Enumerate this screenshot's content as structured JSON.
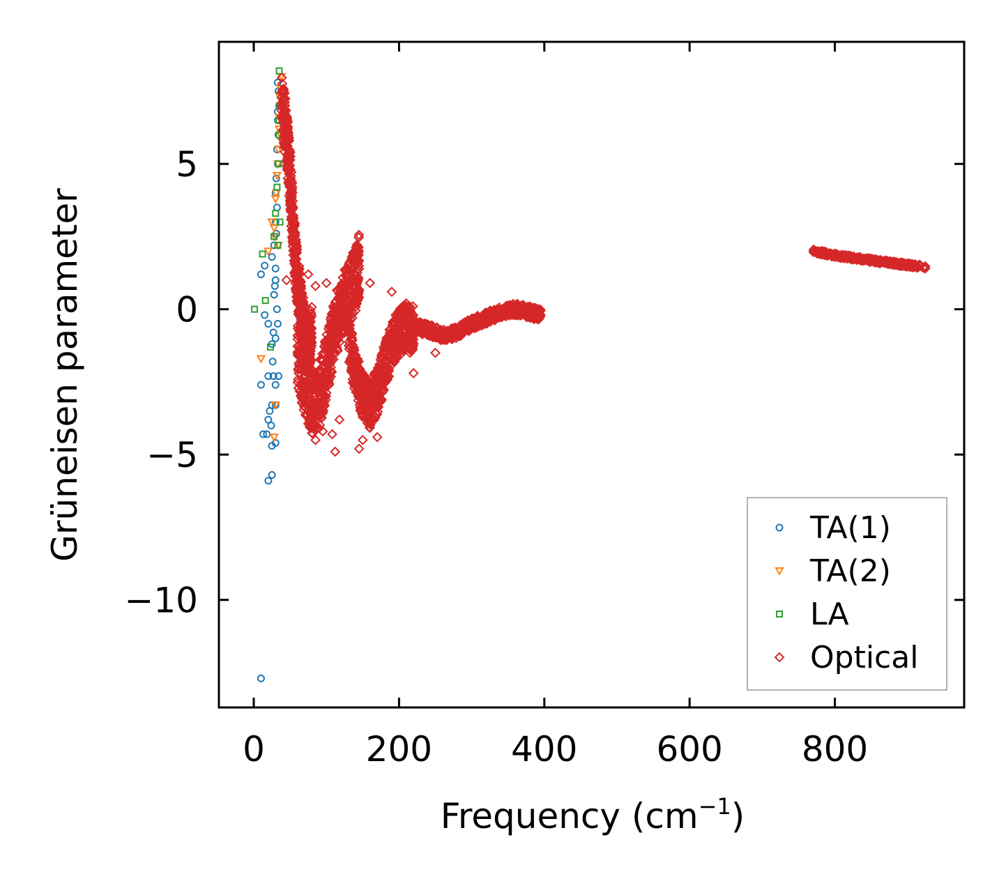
{
  "chart_data": {
    "type": "scatter",
    "title": "",
    "xlabel": "Frequency (cm",
    "xlabel_sup": "−1",
    "xlabel_end": ")",
    "ylabel": "Grüneisen parameter",
    "xlim": [
      -48,
      978
    ],
    "ylim": [
      -13.7,
      9.2
    ],
    "x_ticks": [
      0,
      200,
      400,
      600,
      800
    ],
    "x_tick_labels": [
      "0",
      "200",
      "400",
      "600",
      "800"
    ],
    "y_ticks": [
      5,
      0,
      -5,
      -10
    ],
    "y_tick_labels": [
      "5",
      "0",
      "−5",
      "−10"
    ],
    "legend_position": "lower-right",
    "series": [
      {
        "name": "TA(1)",
        "marker": "circle",
        "color": "#1f77b4",
        "points": [
          [
            10,
            -12.7
          ],
          [
            20,
            -5.9
          ],
          [
            25,
            -5.7
          ],
          [
            13,
            -4.3
          ],
          [
            18,
            -4.3
          ],
          [
            25,
            -4.7
          ],
          [
            30,
            -4.6
          ],
          [
            20,
            -3.8
          ],
          [
            22,
            -3.5
          ],
          [
            25,
            -3.3
          ],
          [
            30,
            -3.3
          ],
          [
            10,
            -2.6
          ],
          [
            20,
            -2.3
          ],
          [
            27,
            -2.3
          ],
          [
            30,
            -2.6
          ],
          [
            15,
            -0.2
          ],
          [
            20,
            -0.5
          ],
          [
            25,
            -1.2
          ],
          [
            30,
            -1.0
          ],
          [
            28,
            0.5
          ],
          [
            30,
            1.0
          ],
          [
            25,
            1.8
          ],
          [
            28,
            2.2
          ],
          [
            10,
            1.2
          ],
          [
            15,
            1.5
          ],
          [
            30,
            3.0
          ],
          [
            32,
            3.5
          ],
          [
            30,
            4.0
          ],
          [
            31,
            4.5
          ],
          [
            33,
            5.0
          ],
          [
            32,
            5.5
          ],
          [
            34,
            6.0
          ],
          [
            33,
            6.5
          ],
          [
            35,
            7.0
          ],
          [
            34,
            7.5
          ],
          [
            33,
            7.8
          ],
          [
            32,
            0.0
          ],
          [
            33,
            -0.5
          ],
          [
            29,
            0.8
          ],
          [
            31,
            2.6
          ],
          [
            26,
            -1.8
          ],
          [
            34,
            -2.3
          ],
          [
            24,
            -4.0
          ],
          [
            33,
            6.8
          ],
          [
            30,
            1.4
          ],
          [
            27,
            -0.8
          ]
        ]
      },
      {
        "name": "TA(2)",
        "marker": "triangle-down",
        "color": "#ff7f0e",
        "points": [
          [
            10,
            -1.7
          ],
          [
            28,
            -4.4
          ],
          [
            30,
            -3.3
          ],
          [
            20,
            2.0
          ],
          [
            25,
            3.0
          ],
          [
            28,
            2.8
          ],
          [
            30,
            3.8
          ],
          [
            32,
            4.6
          ],
          [
            34,
            5.5
          ],
          [
            35,
            6.2
          ],
          [
            36,
            7.0
          ],
          [
            37,
            7.6
          ],
          [
            38,
            8.0
          ],
          [
            36,
            7.3
          ],
          [
            35,
            6.6
          ],
          [
            33,
            5.0
          ],
          [
            31,
            4.0
          ],
          [
            29,
            2.5
          ],
          [
            34,
            2.2
          ],
          [
            37,
            6.0
          ]
        ]
      },
      {
        "name": "LA",
        "marker": "square",
        "color": "#2ca02c",
        "points": [
          [
            1,
            0.0
          ],
          [
            12,
            1.9
          ],
          [
            16,
            0.3
          ],
          [
            23,
            -1.3
          ],
          [
            28,
            2.5
          ],
          [
            30,
            3.3
          ],
          [
            32,
            4.2
          ],
          [
            34,
            5.0
          ],
          [
            35,
            6.0
          ],
          [
            36,
            7.0
          ],
          [
            35,
            8.2
          ],
          [
            33,
            2.2
          ],
          [
            36,
            3.0
          ],
          [
            35,
            6.5
          ]
        ]
      },
      {
        "name": "Optical",
        "marker": "diamond",
        "color": "#d62728",
        "bands": [
          {
            "x": [
              [
                38,
                7.2
              ],
              [
                45,
                6.0
              ],
              [
                50,
                4.5
              ],
              [
                55,
                2.5
              ],
              [
                60,
                1.0
              ],
              [
                65,
                0.0
              ],
              [
                70,
                -0.8
              ],
              [
                75,
                -1.2
              ],
              [
                80,
                -0.8
              ]
            ],
            "spread": 2.0
          },
          {
            "x": [
              [
                60,
                -1.5
              ],
              [
                70,
                -2.5
              ],
              [
                80,
                -3.2
              ],
              [
                90,
                -3.0
              ],
              [
                100,
                -2.0
              ],
              [
                110,
                -0.8
              ],
              [
                120,
                0.0
              ],
              [
                130,
                0.5
              ],
              [
                140,
                1.0
              ],
              [
                145,
                1.5
              ]
            ],
            "spread": 2.2
          },
          {
            "x": [
              [
                130,
                -1.0
              ],
              [
                140,
                -2.2
              ],
              [
                150,
                -3.0
              ],
              [
                160,
                -3.3
              ],
              [
                170,
                -2.8
              ],
              [
                180,
                -2.0
              ],
              [
                190,
                -1.2
              ],
              [
                200,
                -0.8
              ],
              [
                210,
                -0.6
              ],
              [
                220,
                -0.7
              ]
            ],
            "spread": 1.6
          },
          {
            "x": [
              [
                220,
                -0.6
              ],
              [
                240,
                -0.7
              ],
              [
                260,
                -0.9
              ],
              [
                280,
                -0.8
              ],
              [
                300,
                -0.5
              ],
              [
                320,
                -0.3
              ],
              [
                340,
                -0.1
              ],
              [
                360,
                0.0
              ],
              [
                380,
                -0.1
              ],
              [
                395,
                -0.2
              ]
            ],
            "spread": 0.4
          },
          {
            "x": [
              [
                770,
                2.0
              ],
              [
                800,
                1.85
              ],
              [
                830,
                1.75
              ],
              [
                860,
                1.65
              ],
              [
                890,
                1.55
              ],
              [
                925,
                1.45
              ]
            ],
            "spread": 0.12
          }
        ],
        "outliers": [
          [
            45,
            1.0
          ],
          [
            60,
            1.2
          ],
          [
            65,
            0.2
          ],
          [
            75,
            1.2
          ],
          [
            85,
            0.8
          ],
          [
            100,
            0.9
          ],
          [
            108,
            -4.3
          ],
          [
            112,
            -4.9
          ],
          [
            118,
            -3.8
          ],
          [
            85,
            -4.5
          ],
          [
            95,
            -4.2
          ],
          [
            145,
            -4.8
          ],
          [
            150,
            -4.5
          ],
          [
            170,
            -4.4
          ],
          [
            160,
            0.9
          ],
          [
            190,
            0.6
          ],
          [
            210,
            0.2
          ],
          [
            215,
            -1.5
          ],
          [
            220,
            -2.2
          ],
          [
            250,
            -1.5
          ],
          [
            255,
            -1.0
          ]
        ]
      }
    ]
  }
}
